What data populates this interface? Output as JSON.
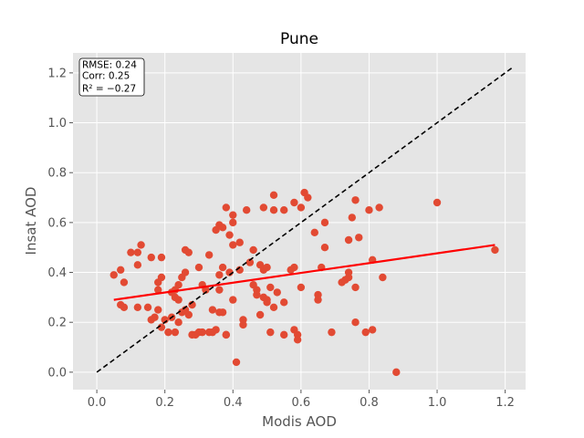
{
  "chart_data": {
    "type": "scatter",
    "title": "Pune",
    "xlabel": "Modis AOD",
    "ylabel": "Insat AOD",
    "xlim": [
      -0.07,
      1.26
    ],
    "ylim": [
      -0.07,
      1.28
    ],
    "xticks": [
      "0.0",
      "0.2",
      "0.4",
      "0.6",
      "0.8",
      "1.0",
      "1.2"
    ],
    "yticks": [
      "0.0",
      "0.2",
      "0.4",
      "0.6",
      "0.8",
      "1.0",
      "1.2"
    ],
    "grid": true,
    "stats_box": {
      "position": "top-left",
      "lines": [
        "RMSE: 0.24",
        "Corr: 0.25",
        "R² = −0.27"
      ]
    },
    "colors": {
      "points": "#e24a33",
      "fit_line": "#ff0000",
      "identity_line": "#000000",
      "plot_background": "#e5e5e5",
      "grid": "#ffffff"
    },
    "one_to_one_line": {
      "from": [
        0.0,
        0.0
      ],
      "to": [
        1.22,
        1.22
      ],
      "style": "dashed"
    },
    "fit_line": {
      "from": [
        0.05,
        0.29
      ],
      "to": [
        1.17,
        0.51
      ]
    },
    "points": [
      [
        0.05,
        0.39
      ],
      [
        0.07,
        0.41
      ],
      [
        0.07,
        0.27
      ],
      [
        0.08,
        0.26
      ],
      [
        0.08,
        0.36
      ],
      [
        0.1,
        0.48
      ],
      [
        0.12,
        0.48
      ],
      [
        0.12,
        0.43
      ],
      [
        0.13,
        0.51
      ],
      [
        0.12,
        0.26
      ],
      [
        0.15,
        0.26
      ],
      [
        0.16,
        0.21
      ],
      [
        0.16,
        0.46
      ],
      [
        0.17,
        0.22
      ],
      [
        0.18,
        0.33
      ],
      [
        0.18,
        0.36
      ],
      [
        0.18,
        0.25
      ],
      [
        0.19,
        0.38
      ],
      [
        0.19,
        0.46
      ],
      [
        0.19,
        0.18
      ],
      [
        0.2,
        0.21
      ],
      [
        0.21,
        0.16
      ],
      [
        0.22,
        0.32
      ],
      [
        0.22,
        0.22
      ],
      [
        0.23,
        0.33
      ],
      [
        0.23,
        0.3
      ],
      [
        0.23,
        0.16
      ],
      [
        0.24,
        0.35
      ],
      [
        0.24,
        0.29
      ],
      [
        0.24,
        0.2
      ],
      [
        0.25,
        0.24
      ],
      [
        0.25,
        0.38
      ],
      [
        0.26,
        0.4
      ],
      [
        0.26,
        0.49
      ],
      [
        0.27,
        0.48
      ],
      [
        0.26,
        0.25
      ],
      [
        0.27,
        0.23
      ],
      [
        0.28,
        0.27
      ],
      [
        0.28,
        0.15
      ],
      [
        0.29,
        0.15
      ],
      [
        0.3,
        0.42
      ],
      [
        0.3,
        0.16
      ],
      [
        0.31,
        0.35
      ],
      [
        0.31,
        0.16
      ],
      [
        0.32,
        0.33
      ],
      [
        0.33,
        0.47
      ],
      [
        0.33,
        0.16
      ],
      [
        0.34,
        0.16
      ],
      [
        0.34,
        0.25
      ],
      [
        0.35,
        0.57
      ],
      [
        0.35,
        0.17
      ],
      [
        0.36,
        0.24
      ],
      [
        0.36,
        0.39
      ],
      [
        0.36,
        0.33
      ],
      [
        0.36,
        0.59
      ],
      [
        0.37,
        0.58
      ],
      [
        0.37,
        0.42
      ],
      [
        0.37,
        0.24
      ],
      [
        0.38,
        0.66
      ],
      [
        0.38,
        0.15
      ],
      [
        0.38,
        0.15
      ],
      [
        0.39,
        0.55
      ],
      [
        0.39,
        0.4
      ],
      [
        0.4,
        0.51
      ],
      [
        0.4,
        0.6
      ],
      [
        0.4,
        0.63
      ],
      [
        0.4,
        0.29
      ],
      [
        0.41,
        0.04
      ],
      [
        0.42,
        0.41
      ],
      [
        0.42,
        0.52
      ],
      [
        0.43,
        0.19
      ],
      [
        0.43,
        0.21
      ],
      [
        0.44,
        0.65
      ],
      [
        0.45,
        0.44
      ],
      [
        0.46,
        0.49
      ],
      [
        0.46,
        0.35
      ],
      [
        0.47,
        0.33
      ],
      [
        0.47,
        0.31
      ],
      [
        0.48,
        0.43
      ],
      [
        0.48,
        0.23
      ],
      [
        0.49,
        0.41
      ],
      [
        0.49,
        0.3
      ],
      [
        0.49,
        0.66
      ],
      [
        0.5,
        0.28
      ],
      [
        0.5,
        0.42
      ],
      [
        0.5,
        0.29
      ],
      [
        0.51,
        0.16
      ],
      [
        0.51,
        0.34
      ],
      [
        0.52,
        0.26
      ],
      [
        0.52,
        0.65
      ],
      [
        0.52,
        0.71
      ],
      [
        0.53,
        0.32
      ],
      [
        0.55,
        0.65
      ],
      [
        0.55,
        0.28
      ],
      [
        0.55,
        0.15
      ],
      [
        0.57,
        0.41
      ],
      [
        0.58,
        0.42
      ],
      [
        0.58,
        0.68
      ],
      [
        0.58,
        0.17
      ],
      [
        0.59,
        0.15
      ],
      [
        0.59,
        0.13
      ],
      [
        0.6,
        0.34
      ],
      [
        0.6,
        0.66
      ],
      [
        0.61,
        0.72
      ],
      [
        0.62,
        0.7
      ],
      [
        0.64,
        0.56
      ],
      [
        0.65,
        0.29
      ],
      [
        0.65,
        0.31
      ],
      [
        0.66,
        0.42
      ],
      [
        0.67,
        0.5
      ],
      [
        0.67,
        0.6
      ],
      [
        0.69,
        0.16
      ],
      [
        0.72,
        0.36
      ],
      [
        0.73,
        0.37
      ],
      [
        0.74,
        0.4
      ],
      [
        0.74,
        0.38
      ],
      [
        0.74,
        0.53
      ],
      [
        0.75,
        0.62
      ],
      [
        0.76,
        0.2
      ],
      [
        0.76,
        0.69
      ],
      [
        0.76,
        0.34
      ],
      [
        0.77,
        0.54
      ],
      [
        0.79,
        0.16
      ],
      [
        0.8,
        0.65
      ],
      [
        0.81,
        0.45
      ],
      [
        0.81,
        0.17
      ],
      [
        0.83,
        0.66
      ],
      [
        0.84,
        0.38
      ],
      [
        0.88,
        0.0
      ],
      [
        1.0,
        0.68
      ],
      [
        1.17,
        0.49
      ]
    ]
  }
}
